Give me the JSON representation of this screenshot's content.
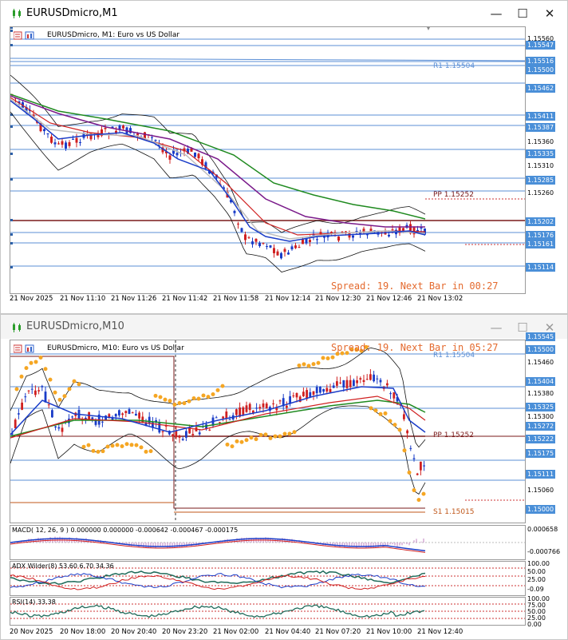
{
  "window1": {
    "title": "EURUSDmicro,M1",
    "header": "EURUSDmicro, M1:  Euro vs US Dollar",
    "spread": "Spread: 19. Next Bar in 00:27",
    "pivot_labels": [
      "R1 1.15504",
      "PP 1.15252"
    ],
    "price_labels": [
      {
        "text": "1.15560",
        "style": "plain"
      },
      {
        "text": "1.15547",
        "style": "box"
      },
      {
        "text": "1.15516",
        "style": "box"
      },
      {
        "text": "1.15500",
        "style": "box"
      },
      {
        "text": "1.15462",
        "style": "box"
      },
      {
        "text": "1.15411",
        "style": "box"
      },
      {
        "text": "1.15387",
        "style": "box"
      },
      {
        "text": "1.15360",
        "style": "plain"
      },
      {
        "text": "1.15335",
        "style": "box"
      },
      {
        "text": "1.15310",
        "style": "plain"
      },
      {
        "text": "1.15285",
        "style": "box"
      },
      {
        "text": "1.15260",
        "style": "plain"
      },
      {
        "text": "1.15202",
        "style": "box"
      },
      {
        "text": "1.15176",
        "style": "box"
      },
      {
        "text": "1.15161",
        "style": "box"
      },
      {
        "text": "1.15114",
        "style": "box"
      }
    ],
    "time_labels": [
      "21 Nov 2025",
      "21 Nov 11:10",
      "21 Nov 11:26",
      "21 Nov 11:42",
      "21 Nov 11:58",
      "21 Nov 12:14",
      "21 Nov 12:30",
      "21 Nov 12:46",
      "21 Nov 13:02"
    ]
  },
  "window2": {
    "title": "EURUSDmicro,M10",
    "header": "EURUSDmicro, M10:  Euro vs US Dollar",
    "spread": "Spread: 19. Next Bar in 05:27",
    "pivot_labels": [
      "R1 1.15504",
      "PP 1.15252",
      "S1 1.15015"
    ],
    "price_labels": [
      {
        "text": "1.15545",
        "style": "box"
      },
      {
        "text": "1.15500",
        "style": "box"
      },
      {
        "text": "1.15460",
        "style": "plain"
      },
      {
        "text": "1.15404",
        "style": "box"
      },
      {
        "text": "1.15380",
        "style": "plain"
      },
      {
        "text": "1.15325",
        "style": "box"
      },
      {
        "text": "1.15300",
        "style": "plain"
      },
      {
        "text": "1.15272",
        "style": "box"
      },
      {
        "text": "1.15222",
        "style": "box"
      },
      {
        "text": "1.15175",
        "style": "box"
      },
      {
        "text": "1.15111",
        "style": "box"
      },
      {
        "text": "1.15060",
        "style": "plain"
      },
      {
        "text": "1.15000",
        "style": "box"
      }
    ],
    "macd": {
      "label": "MACD( 12, 26, 9 ) 0.000000 0.000000 -0.000642 -0.000467 -0.000175",
      "scale": [
        "0.000658",
        "-0.000766"
      ]
    },
    "adx": {
      "label": "ADX Wilder(8) 53.60 6.70 34.36",
      "scale": [
        "100.00",
        "50.00",
        "25.00",
        "-0.09"
      ]
    },
    "rsi": {
      "label": "RSI(14) 33.38",
      "scale": [
        "100.00",
        "75.00",
        "50.00",
        "25.00",
        "0.00"
      ]
    },
    "time_labels": [
      "20 Nov 2025",
      "20 Nov 18:00",
      "20 Nov 20:40",
      "20 Nov 23:20",
      "21 Nov 02:00",
      "21 Nov 04:40",
      "21 Nov 07:20",
      "21 Nov 10:00",
      "21 Nov 12:40"
    ]
  }
}
